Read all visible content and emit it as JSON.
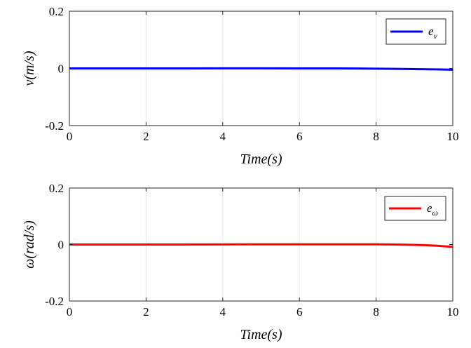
{
  "chart_data": [
    {
      "type": "line",
      "xlabel": "Time(s)",
      "ylabel": "v(m/s)",
      "xlim": [
        0,
        10
      ],
      "ylim": [
        -0.2,
        0.2
      ],
      "xticks": [
        "0",
        "2",
        "4",
        "6",
        "8",
        "10"
      ],
      "yticks": [
        "-0.2",
        "0",
        "0.2"
      ],
      "grid": "vertical",
      "legend_position": "top-right",
      "series": [
        {
          "name": "e_v",
          "legend_main": "e",
          "legend_sub": "v",
          "color": "#0000ff",
          "x": [
            0,
            1,
            2,
            3,
            4,
            5,
            6,
            7,
            7.5,
            8,
            8.5,
            9,
            9.5,
            10
          ],
          "y": [
            0,
            0,
            0,
            0,
            0.0002,
            0.0002,
            0.0001,
            0,
            -0.0003,
            -0.0008,
            -0.0015,
            -0.0025,
            -0.0035,
            -0.0045
          ]
        }
      ]
    },
    {
      "type": "line",
      "xlabel": "Time(s)",
      "ylabel": "ω(rad/s)",
      "xlim": [
        0,
        10
      ],
      "ylim": [
        -0.2,
        0.2
      ],
      "xticks": [
        "0",
        "2",
        "4",
        "6",
        "8",
        "10"
      ],
      "yticks": [
        "-0.2",
        "0",
        "0.2"
      ],
      "grid": "vertical",
      "legend_position": "top-right",
      "series": [
        {
          "name": "e_ω",
          "legend_main": "e",
          "legend_sub": "ω",
          "color": "#ff0000",
          "x": [
            0,
            1,
            2,
            3,
            4,
            5,
            6,
            7,
            8,
            8.5,
            9,
            9.3,
            9.6,
            9.8,
            10
          ],
          "y": [
            0,
            0,
            0,
            0,
            0.0004,
            0.0006,
            0.0007,
            0.0007,
            0.0005,
            0,
            -0.0012,
            -0.0025,
            -0.0045,
            -0.0065,
            -0.0085
          ]
        }
      ]
    }
  ]
}
